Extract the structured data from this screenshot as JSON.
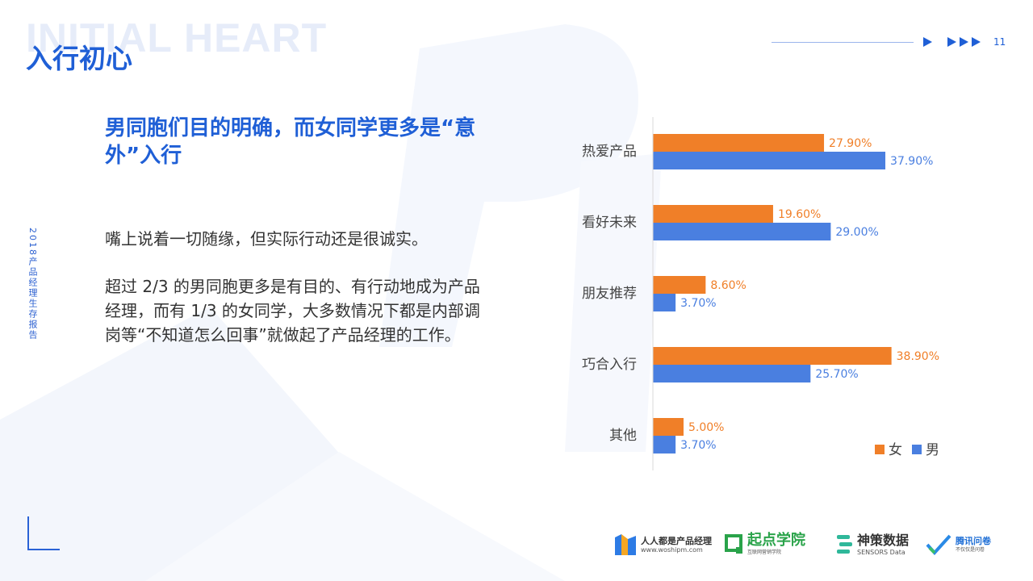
{
  "header": {
    "watermark": "INITIAL HEART",
    "section_title": "入行初心",
    "page_number": "11"
  },
  "side_label": "2018产品经理生存报告",
  "headline": "男同胞们目的明确，而女同学更多是“意外”入行",
  "paragraph1": "嘴上说着一切随缘，但实际行动还是很诚实。",
  "paragraph2": "超过 2/3 的男同胞更多是有目的、有行动地成为产品经理，而有 1/3 的女同学，大多数情况下都是内部调岗等“不知道怎么回事”就做起了产品经理的工作。",
  "colors": {
    "accent": "#1f5fd6",
    "female": "#f07f28",
    "male": "#4a7fe0"
  },
  "chart_data": {
    "type": "bar",
    "orientation": "horizontal",
    "categories": [
      "热爱产品",
      "看好未来",
      "朋友推荐",
      "巧合入行",
      "其他"
    ],
    "series": [
      {
        "name": "女",
        "values": [
          27.9,
          19.6,
          8.6,
          38.9,
          5.0
        ],
        "labels": [
          "27.90%",
          "19.60%",
          "8.60%",
          "38.90%",
          "5.00%"
        ]
      },
      {
        "name": "男",
        "values": [
          37.9,
          29.0,
          3.7,
          25.7,
          3.7
        ],
        "labels": [
          "37.90%",
          "29.00%",
          "3.70%",
          "25.70%",
          "3.70%"
        ]
      }
    ],
    "xlim": [
      0,
      40
    ],
    "legend": "bottom-right",
    "grid": false
  },
  "footer_logos": [
    {
      "name": "人人都是产品经理",
      "sub": "www.woshipm.com",
      "icon": "woshipm-logo"
    },
    {
      "name": "起点学院",
      "sub": "互联网营销学院",
      "icon": "qidian-logo"
    },
    {
      "name": "神策数据",
      "sub": "SENSORS Data",
      "icon": "sensors-logo"
    },
    {
      "name": "腾讯问卷",
      "sub": "不仅仅是问卷",
      "icon": "tencent-wj-logo"
    }
  ]
}
